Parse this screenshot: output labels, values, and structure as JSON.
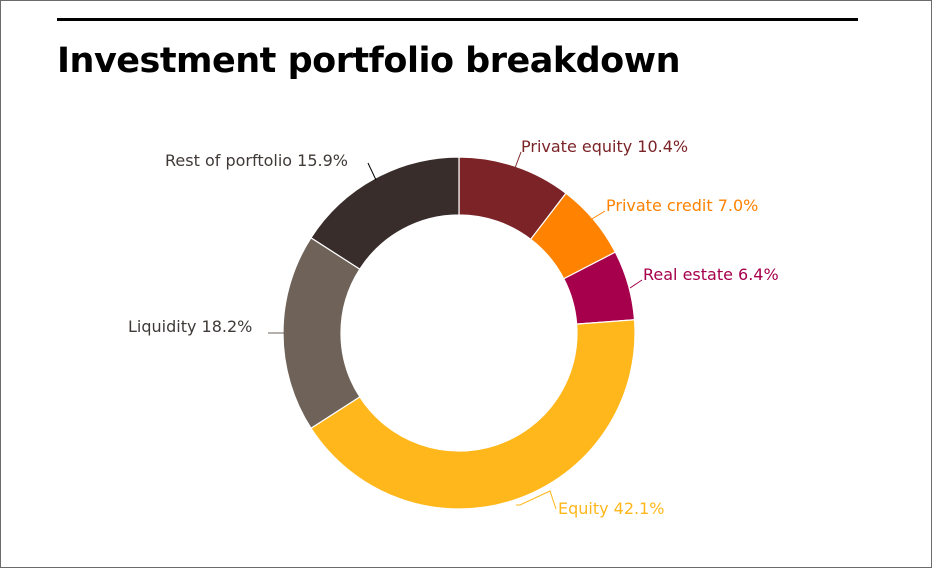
{
  "title": "Investment portfolio breakdown",
  "chart_data": {
    "type": "pie",
    "donut": true,
    "title": "Investment portfolio breakdown",
    "unit": "%",
    "slices": [
      {
        "label": "Private equity",
        "value": 10.4,
        "display": "Private equity  10.4%",
        "color": "#7b2327"
      },
      {
        "label": "Private credit",
        "value": 7.0,
        "display": "Private credit   7.0%",
        "color": "#ff8200"
      },
      {
        "label": "Real estate",
        "value": 6.4,
        "display": "Real estate  6.4%",
        "color": "#a6004c"
      },
      {
        "label": "Equity",
        "value": 42.1,
        "display": "Equity 42.1%",
        "color": "#ffb71b"
      },
      {
        "label": "Liquidity",
        "value": 18.2,
        "display": "Liquidity  18.2%",
        "color": "#6e6259"
      },
      {
        "label": "Rest of porftolio",
        "value": 15.9,
        "display": "Rest of porftolio 15.9%",
        "color": "#382d2b"
      }
    ],
    "legend": "none",
    "label_style": "external labels with leader lines"
  }
}
